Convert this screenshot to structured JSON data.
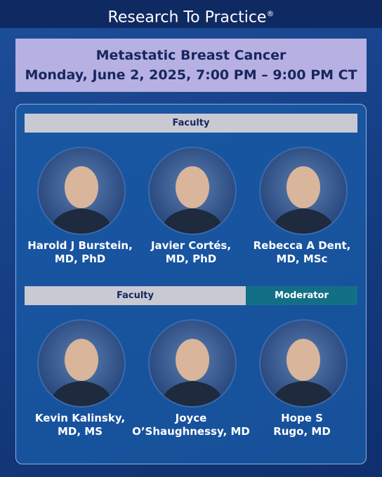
{
  "header": {
    "brand": "Research To Practice",
    "mark": "®"
  },
  "event": {
    "title": "Metastatic Breast Cancer",
    "datetime": "Monday, June 2, 2025, 7:00 PM – 9:00 PM CT"
  },
  "rows": [
    {
      "labels": [
        "Faculty"
      ],
      "people": [
        {
          "name": "Harold J Burstein,",
          "credentials": "MD, PhD"
        },
        {
          "name": "Javier Cortés,",
          "credentials": "MD, PhD"
        },
        {
          "name": "Rebecca A Dent,",
          "credentials": "MD, MSc"
        }
      ]
    },
    {
      "labels": [
        "Faculty",
        "Moderator"
      ],
      "people": [
        {
          "name": "Kevin Kalinsky,",
          "credentials": "MD, MS"
        },
        {
          "name": "Joyce",
          "credentials": "O’Shaughnessy, MD"
        },
        {
          "name": "Hope S",
          "credentials": "Rugo, MD"
        }
      ]
    }
  ]
}
